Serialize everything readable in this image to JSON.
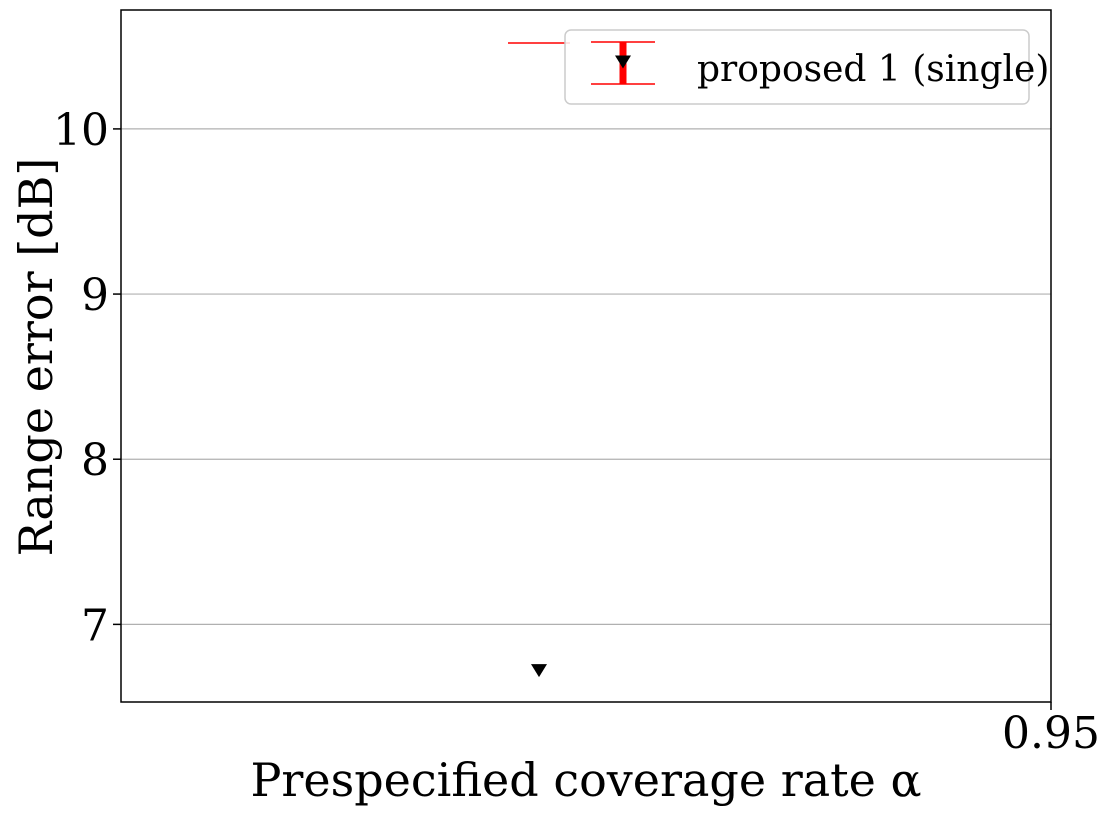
{
  "chart_data": {
    "type": "scatter",
    "title": "",
    "xlabel": "Prespecified coverage rate α",
    "ylabel": "Range error [dB]",
    "x_ticks": [
      "0.95"
    ],
    "y_ticks": [
      7,
      8,
      9,
      10
    ],
    "ylim": [
      6.53,
      10.72
    ],
    "grid": "y-major",
    "legend_position": "top-right",
    "series": [
      {
        "name": "proposed 1 (single)",
        "marker": "triangle-down",
        "marker_color": "#000000",
        "errorbar_color": "#ff0000",
        "points": [
          {
            "y": 6.72,
            "y_upper": null,
            "y_lower": null
          },
          {
            "y": null,
            "y_upper": 10.52,
            "y_lower": null
          }
        ]
      }
    ]
  }
}
